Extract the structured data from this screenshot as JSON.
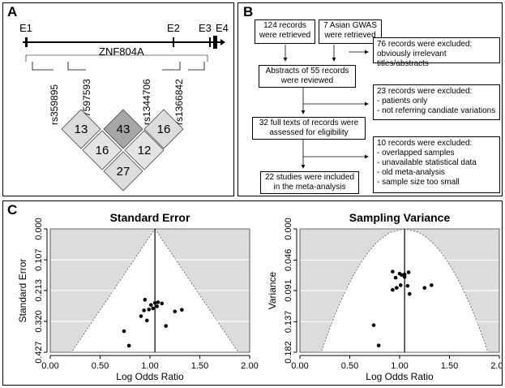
{
  "panels": {
    "a": "A",
    "b": "B",
    "c": "C"
  },
  "panel_a": {
    "gene": "ZNF804A",
    "exons": [
      "E1",
      "E2",
      "E3",
      "E4"
    ],
    "snps": [
      "rs359895",
      "rs7597593",
      "rs1344706",
      "rs1366842"
    ],
    "ld_values": [
      "13",
      "43",
      "16",
      "16",
      "12",
      "27"
    ]
  },
  "panel_b": {
    "box_records": "124 records\nwere retrieved",
    "box_asian": "7 Asian GWAS\nwere retrieved",
    "box_abstracts": "Abstracts of 55 records\nwere reviewed",
    "box_fulltext": "32 full texts of records were\nassessed for eligibility",
    "box_included": "22 studies were included\nin the meta-analysis",
    "excl1_title": "76 records were excluded:",
    "excl1_reason": "obviously irrelevant titles/abstracts",
    "excl2_title": "23 records were excluded:",
    "excl2_items": [
      "patients only",
      "not referring candiate variations"
    ],
    "excl3_title": "10 records were excluded:",
    "excl3_items": [
      "overlapped samples",
      "unavailable statistical data",
      "old meta-analysis",
      "sample size too small"
    ]
  },
  "chart_data": [
    {
      "type": "scatter",
      "title": "Standard Error",
      "xlabel": "Log Odds Ratio",
      "ylabel": "Standard Error",
      "xlim": [
        0,
        2
      ],
      "ylim": [
        0.427,
        0
      ],
      "y_reversed": true,
      "xticks": [
        "0.00",
        "0.50",
        "1.00",
        "1.50",
        "2.00"
      ],
      "xtick_values": [
        0,
        0.5,
        1,
        1.5,
        2
      ],
      "yticks": [
        "0.000",
        "0.107",
        "0.213",
        "0.320",
        "0.427"
      ],
      "ytick_values": [
        0,
        0.107,
        0.213,
        0.32,
        0.427
      ],
      "pooled_estimate": 1.05,
      "funnel": "inverted-triangle",
      "grid": "horizontal",
      "points": [
        {
          "x": 0.95,
          "y": 0.245
        },
        {
          "x": 1.05,
          "y": 0.256
        },
        {
          "x": 1.08,
          "y": 0.254
        },
        {
          "x": 1.12,
          "y": 0.258
        },
        {
          "x": 1.01,
          "y": 0.263
        },
        {
          "x": 1.07,
          "y": 0.268
        },
        {
          "x": 1.03,
          "y": 0.275
        },
        {
          "x": 0.99,
          "y": 0.279
        },
        {
          "x": 0.94,
          "y": 0.282
        },
        {
          "x": 1.32,
          "y": 0.28
        },
        {
          "x": 1.25,
          "y": 0.286
        },
        {
          "x": 0.91,
          "y": 0.302
        },
        {
          "x": 0.97,
          "y": 0.317
        },
        {
          "x": 1.16,
          "y": 0.336
        },
        {
          "x": 0.74,
          "y": 0.354
        },
        {
          "x": 0.79,
          "y": 0.404
        }
      ]
    },
    {
      "type": "scatter",
      "title": "Sampling Variance",
      "xlabel": "Log Odds Ratio",
      "ylabel": "Variance",
      "xlim": [
        0,
        2
      ],
      "ylim": [
        0.182,
        0
      ],
      "y_reversed": true,
      "xticks": [
        "0.00",
        "0.50",
        "1.00",
        "1.50",
        "2.00"
      ],
      "xtick_values": [
        0,
        0.5,
        1,
        1.5,
        2
      ],
      "yticks": [
        "0.000",
        "0.046",
        "0.091",
        "0.137",
        "0.182"
      ],
      "ytick_values": [
        0,
        0.046,
        0.091,
        0.137,
        0.182
      ],
      "pooled_estimate": 1.05,
      "funnel": "parabola",
      "grid": "horizontal",
      "points": [
        {
          "x": 0.93,
          "y": 0.063
        },
        {
          "x": 1.0,
          "y": 0.066
        },
        {
          "x": 1.02,
          "y": 0.068
        },
        {
          "x": 1.05,
          "y": 0.067
        },
        {
          "x": 1.09,
          "y": 0.064
        },
        {
          "x": 1.05,
          "y": 0.071
        },
        {
          "x": 1.01,
          "y": 0.083
        },
        {
          "x": 0.97,
          "y": 0.087
        },
        {
          "x": 1.08,
          "y": 0.084
        },
        {
          "x": 1.32,
          "y": 0.083
        },
        {
          "x": 1.25,
          "y": 0.087
        },
        {
          "x": 0.93,
          "y": 0.09
        },
        {
          "x": 1.1,
          "y": 0.096
        },
        {
          "x": 0.96,
          "y": 0.072
        },
        {
          "x": 0.74,
          "y": 0.142
        },
        {
          "x": 0.79,
          "y": 0.172
        }
      ]
    }
  ]
}
